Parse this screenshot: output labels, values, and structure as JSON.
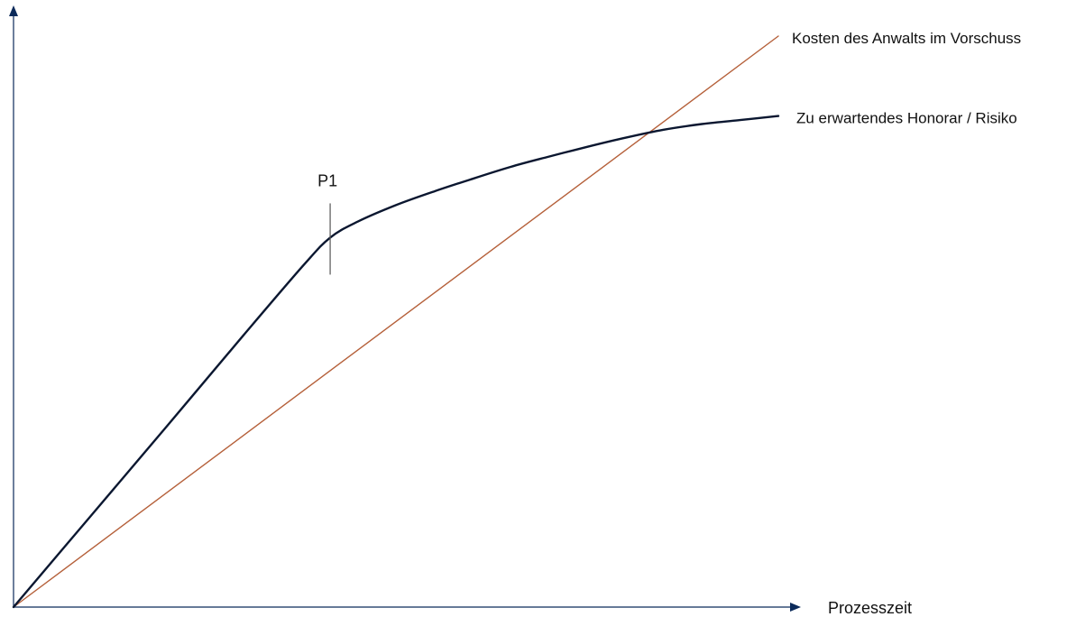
{
  "chart_data": {
    "type": "line",
    "xlabel": "Prozesszeit",
    "ylabel": "",
    "marker": {
      "label": "P1",
      "x": 0.414
    },
    "series": [
      {
        "name": "Kosten des Anwalts im Vorschuss",
        "color": "#b5603a",
        "points": [
          [
            0,
            0
          ],
          [
            1.0,
            1.0
          ]
        ]
      },
      {
        "name": "Zu erwartendes Honorar / Risiko",
        "color": "#0b1730",
        "points": [
          [
            0.0,
            0.0
          ],
          [
            0.1,
            0.158
          ],
          [
            0.2,
            0.316
          ],
          [
            0.3,
            0.475
          ],
          [
            0.38,
            0.6
          ],
          [
            0.414,
            0.647
          ],
          [
            0.45,
            0.675
          ],
          [
            0.5,
            0.704
          ],
          [
            0.55,
            0.728
          ],
          [
            0.6,
            0.75
          ],
          [
            0.65,
            0.771
          ],
          [
            0.7,
            0.789
          ],
          [
            0.75,
            0.806
          ],
          [
            0.8,
            0.822
          ],
          [
            0.85,
            0.836
          ],
          [
            0.9,
            0.846
          ],
          [
            0.95,
            0.853
          ],
          [
            1.0,
            0.86
          ]
        ]
      }
    ],
    "xlim": [
      0,
      1
    ],
    "ylim": [
      0,
      1
    ],
    "grid": false,
    "legend": "series labels at line ends"
  },
  "colors": {
    "axis": "#0b2a5a",
    "p1_tick": "#555555"
  }
}
